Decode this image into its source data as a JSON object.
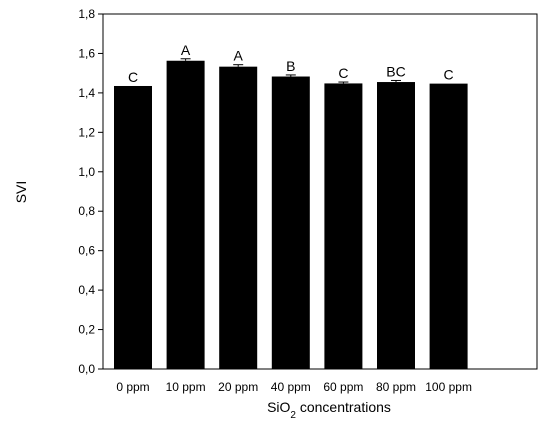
{
  "chart_data": {
    "type": "bar",
    "title": "",
    "categories": [
      "0 ppm",
      "10 ppm",
      "20 ppm",
      "40 ppm",
      "60 ppm",
      "80 ppm",
      "100 ppm"
    ],
    "values": [
      1.435,
      1.563,
      1.533,
      1.483,
      1.448,
      1.455,
      1.447
    ],
    "errors": [
      0.0,
      0.01,
      0.01,
      0.008,
      0.007,
      0.008,
      0.0
    ],
    "significance_letters": [
      "C",
      "A",
      "A",
      "B",
      "C",
      "BC",
      "C"
    ],
    "ylabel": "SVI",
    "xlabel_main": "SiO",
    "xlabel_subscript": "2",
    "xlabel_rest": " concentrations",
    "ylim": [
      0.0,
      1.8
    ],
    "yticks": [
      "0,0",
      "0,2",
      "0,4",
      "0,6",
      "0,8",
      "1,0",
      "1,2",
      "1,4",
      "1,6",
      "1,8"
    ],
    "bar_color": "#000000",
    "grid": false
  }
}
